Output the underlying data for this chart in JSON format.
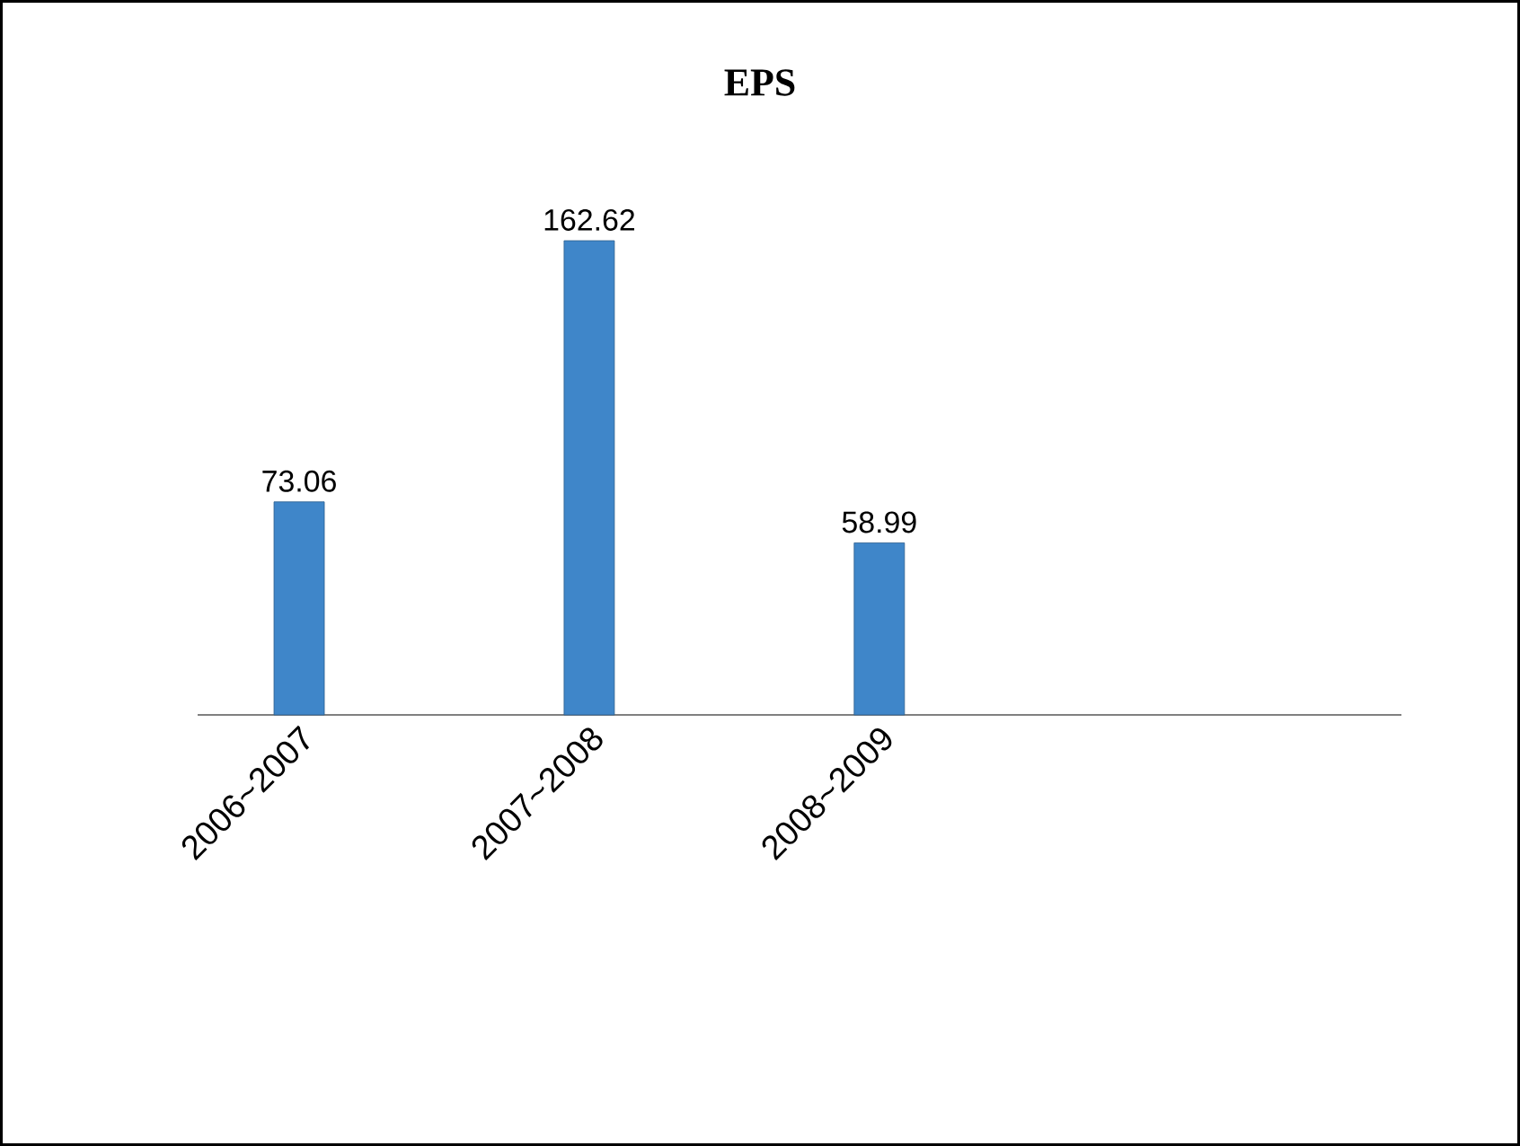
{
  "chart_data": {
    "type": "bar",
    "title": "EPS",
    "categories": [
      "2006~2007",
      "2007~2008",
      "2008~2009"
    ],
    "values": [
      73.06,
      162.62,
      58.99
    ],
    "color": "#3f86c9",
    "data_labels": true
  }
}
